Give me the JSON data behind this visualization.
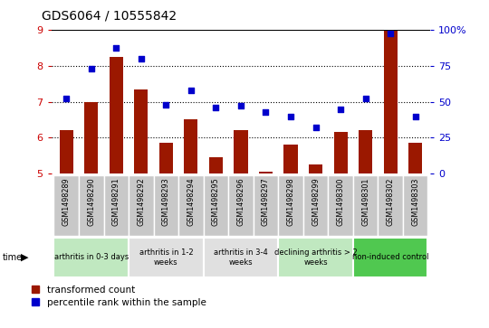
{
  "title": "GDS6064 / 10555842",
  "samples": [
    "GSM1498289",
    "GSM1498290",
    "GSM1498291",
    "GSM1498292",
    "GSM1498293",
    "GSM1498294",
    "GSM1498295",
    "GSM1498296",
    "GSM1498297",
    "GSM1498298",
    "GSM1498299",
    "GSM1498300",
    "GSM1498301",
    "GSM1498302",
    "GSM1498303"
  ],
  "bar_values": [
    6.2,
    7.0,
    8.25,
    7.35,
    5.85,
    6.5,
    5.45,
    6.2,
    5.05,
    5.8,
    5.25,
    6.15,
    6.2,
    9.0,
    5.85
  ],
  "dot_values": [
    52,
    73,
    87,
    80,
    48,
    58,
    46,
    47,
    43,
    40,
    32,
    45,
    52,
    97,
    40
  ],
  "ylim_left": [
    5,
    9
  ],
  "ylim_right": [
    0,
    100
  ],
  "yticks_left": [
    5,
    6,
    7,
    8,
    9
  ],
  "yticks_right": [
    0,
    25,
    50,
    75,
    100
  ],
  "ytick_right_labels": [
    "0",
    "25",
    "50",
    "75",
    "100%"
  ],
  "groups": [
    {
      "label": "arthritis in 0-3 days",
      "count": 3,
      "color": "#c0e8c0"
    },
    {
      "label": "arthritis in 1-2\nweeks",
      "count": 3,
      "color": "#e0e0e0"
    },
    {
      "label": "arthritis in 3-4\nweeks",
      "count": 3,
      "color": "#e0e0e0"
    },
    {
      "label": "declining arthritis > 2\nweeks",
      "count": 3,
      "color": "#c0e8c0"
    },
    {
      "label": "non-induced control",
      "count": 3,
      "color": "#50c850"
    }
  ],
  "bar_color": "#9b1800",
  "dot_color": "#0000cc",
  "left_tick_color": "#cc0000",
  "right_tick_color": "#0000cc",
  "bar_width": 0.55,
  "legend_entries": [
    "transformed count",
    "percentile rank within the sample"
  ],
  "sample_box_color": "#c8c8c8"
}
